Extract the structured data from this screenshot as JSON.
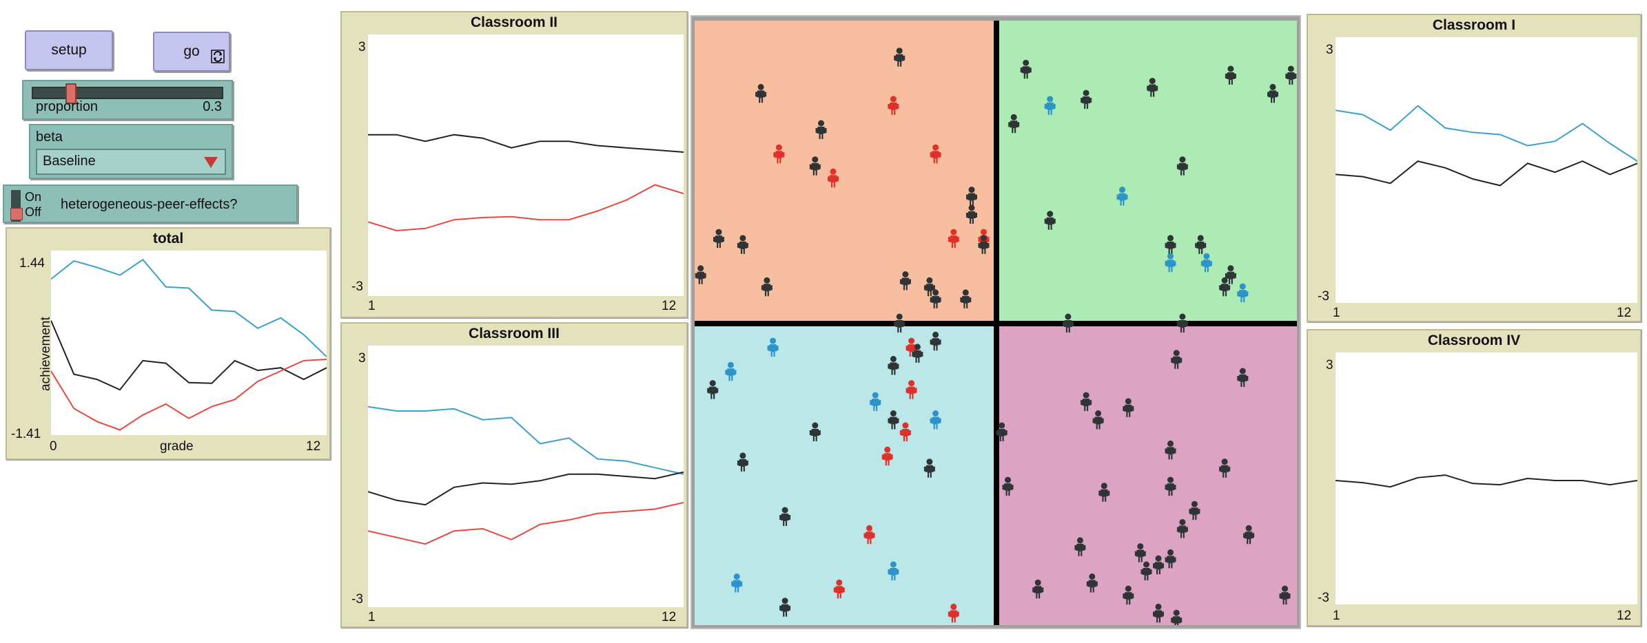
{
  "controls": {
    "setup_label": "setup",
    "go_label": "go",
    "forever_icon": "forever-arrows-icon",
    "slider": {
      "label": "proportion",
      "value_text": "0.3",
      "value": 0.3,
      "min": 0,
      "max": 1
    },
    "chooser": {
      "label": "beta",
      "selected": "Baseline"
    },
    "switch": {
      "on_label": "On",
      "off_label": "Off",
      "name": "heterogeneous-peer-effects?",
      "state": "Off"
    }
  },
  "colors": {
    "black_line": "#222222",
    "red_line": "#e8483d",
    "blue_line": "#3aa0d0",
    "room_orange": "#f7bf9f",
    "room_green": "#acebb4",
    "room_blue": "#bce7e9",
    "room_pink": "#dca3c2",
    "plot_bg": "#e4e2bd"
  },
  "plots": {
    "total": {
      "title": "total",
      "xlabel": "grade",
      "ylabel": "achievement",
      "xmin_label": "0",
      "xmax_label": "12",
      "ymax_label": "1.44",
      "ymin_label": "-1.41",
      "xlim": [
        0,
        12
      ],
      "ylim": [
        -1.41,
        1.44
      ],
      "series": [
        {
          "color": "#3aa0d0",
          "x": [
            0,
            1,
            2,
            3,
            4,
            5,
            6,
            7,
            8,
            9,
            10,
            11,
            12
          ],
          "y": [
            1.0,
            1.28,
            1.18,
            1.06,
            1.3,
            0.88,
            0.86,
            0.52,
            0.5,
            0.24,
            0.4,
            0.14,
            -0.2
          ]
        },
        {
          "color": "#222222",
          "x": [
            0,
            1,
            2,
            3,
            4,
            5,
            6,
            7,
            8,
            9,
            10,
            11,
            12
          ],
          "y": [
            0.36,
            -0.47,
            -0.55,
            -0.71,
            -0.26,
            -0.3,
            -0.6,
            -0.61,
            -0.26,
            -0.41,
            -0.37,
            -0.55,
            -0.37
          ]
        },
        {
          "color": "#e8483d",
          "x": [
            0,
            1,
            2,
            3,
            4,
            5,
            6,
            7,
            8,
            9,
            10,
            11,
            12
          ],
          "y": [
            -0.42,
            -1.0,
            -1.2,
            -1.33,
            -1.1,
            -0.93,
            -1.15,
            -0.97,
            -0.86,
            -0.58,
            -0.42,
            -0.26,
            -0.24
          ]
        }
      ]
    },
    "classroom_ii": {
      "title": "Classroom II",
      "xmin_label": "1",
      "xmax_label": "12",
      "ymax_label": "3",
      "ymin_label": "-3",
      "xlim": [
        1,
        12
      ],
      "ylim": [
        -3,
        3
      ],
      "series": [
        {
          "color": "#222222",
          "x": [
            1,
            2,
            3,
            4,
            5,
            6,
            7,
            8,
            9,
            10,
            11,
            12
          ],
          "y": [
            0.7,
            0.7,
            0.55,
            0.7,
            0.62,
            0.4,
            0.55,
            0.55,
            0.45,
            0.4,
            0.35,
            0.3
          ]
        },
        {
          "color": "#e8483d",
          "x": [
            1,
            2,
            3,
            4,
            5,
            6,
            7,
            8,
            9,
            10,
            11,
            12
          ],
          "y": [
            -1.3,
            -1.5,
            -1.45,
            -1.25,
            -1.2,
            -1.18,
            -1.25,
            -1.25,
            -1.05,
            -0.8,
            -0.45,
            -0.65
          ]
        }
      ]
    },
    "classroom_iii": {
      "title": "Classroom III",
      "xmin_label": "1",
      "xmax_label": "12",
      "ymax_label": "3",
      "ymin_label": "-3",
      "xlim": [
        1,
        12
      ],
      "ylim": [
        -3,
        3
      ],
      "series": [
        {
          "color": "#3aa0d0",
          "x": [
            1,
            2,
            3,
            4,
            5,
            6,
            7,
            8,
            9,
            10,
            11,
            12
          ],
          "y": [
            1.6,
            1.5,
            1.5,
            1.55,
            1.3,
            1.35,
            0.75,
            0.88,
            0.4,
            0.35,
            0.2,
            0.05
          ]
        },
        {
          "color": "#222222",
          "x": [
            1,
            2,
            3,
            4,
            5,
            6,
            7,
            8,
            9,
            10,
            11,
            12
          ],
          "y": [
            -0.35,
            -0.55,
            -0.65,
            -0.25,
            -0.15,
            -0.18,
            -0.1,
            0.05,
            0.05,
            0.0,
            -0.05,
            0.1
          ]
        },
        {
          "color": "#e8483d",
          "x": [
            1,
            2,
            3,
            4,
            5,
            6,
            7,
            8,
            9,
            10,
            11,
            12
          ],
          "y": [
            -1.25,
            -1.4,
            -1.55,
            -1.25,
            -1.2,
            -1.45,
            -1.1,
            -1.0,
            -0.85,
            -0.8,
            -0.75,
            -0.6
          ]
        }
      ]
    },
    "classroom_i": {
      "title": "Classroom I",
      "xmin_label": "1",
      "xmax_label": "12",
      "ymax_label": "3",
      "ymin_label": "-3",
      "xlim": [
        1,
        12
      ],
      "ylim": [
        -3,
        3
      ],
      "series": [
        {
          "color": "#3aa0d0",
          "x": [
            1,
            2,
            3,
            4,
            5,
            6,
            7,
            8,
            9,
            10,
            11,
            12
          ],
          "y": [
            1.35,
            1.25,
            0.9,
            1.45,
            0.95,
            0.85,
            0.8,
            0.55,
            0.65,
            1.05,
            0.6,
            0.2
          ]
        },
        {
          "color": "#222222",
          "x": [
            1,
            2,
            3,
            4,
            5,
            6,
            7,
            8,
            9,
            10,
            11,
            12
          ],
          "y": [
            -0.1,
            -0.15,
            -0.3,
            0.2,
            0.05,
            -0.2,
            -0.35,
            0.15,
            -0.05,
            0.2,
            -0.1,
            0.15
          ]
        }
      ]
    },
    "classroom_iv": {
      "title": "Classroom IV",
      "xmin_label": "1",
      "xmax_label": "12",
      "ymax_label": "3",
      "ymin_label": "-3",
      "xlim": [
        1,
        12
      ],
      "ylim": [
        -3,
        3
      ],
      "series": [
        {
          "color": "#222222",
          "x": [
            1,
            2,
            3,
            4,
            5,
            6,
            7,
            8,
            9,
            10,
            11,
            12
          ],
          "y": [
            -0.05,
            -0.1,
            -0.2,
            0.02,
            0.08,
            -0.12,
            -0.15,
            0.0,
            -0.05,
            -0.05,
            -0.15,
            -0.05
          ]
        }
      ]
    }
  },
  "world": {
    "agents": [
      [
        0.34,
        0.06,
        "k"
      ],
      [
        0.11,
        0.12,
        "k"
      ],
      [
        0.65,
        0.13,
        "k"
      ],
      [
        0.55,
        0.08,
        "k"
      ],
      [
        0.76,
        0.11,
        "k"
      ],
      [
        0.89,
        0.09,
        "k"
      ],
      [
        0.96,
        0.12,
        "k"
      ],
      [
        0.99,
        0.09,
        "k"
      ],
      [
        0.59,
        0.14,
        "b"
      ],
      [
        0.53,
        0.17,
        "k"
      ],
      [
        0.21,
        0.18,
        "k"
      ],
      [
        0.33,
        0.14,
        "r"
      ],
      [
        0.4,
        0.22,
        "r"
      ],
      [
        0.14,
        0.22,
        "r"
      ],
      [
        0.2,
        0.24,
        "k"
      ],
      [
        0.23,
        0.26,
        "r"
      ],
      [
        0.81,
        0.24,
        "k"
      ],
      [
        0.71,
        0.29,
        "b"
      ],
      [
        0.46,
        0.29,
        "k"
      ],
      [
        0.46,
        0.32,
        "k"
      ],
      [
        0.59,
        0.33,
        "k"
      ],
      [
        0.43,
        0.36,
        "r"
      ],
      [
        0.48,
        0.36,
        "r"
      ],
      [
        0.48,
        0.37,
        "k"
      ],
      [
        0.04,
        0.36,
        "k"
      ],
      [
        0.08,
        0.37,
        "k"
      ],
      [
        0.79,
        0.37,
        "k"
      ],
      [
        0.84,
        0.37,
        "k"
      ],
      [
        0.79,
        0.4,
        "b"
      ],
      [
        0.85,
        0.4,
        "b"
      ],
      [
        0.89,
        0.42,
        "k"
      ],
      [
        0.01,
        0.42,
        "k"
      ],
      [
        0.12,
        0.44,
        "k"
      ],
      [
        0.35,
        0.43,
        "k"
      ],
      [
        0.39,
        0.44,
        "k"
      ],
      [
        0.45,
        0.46,
        "k"
      ],
      [
        0.4,
        0.46,
        "k"
      ],
      [
        0.88,
        0.44,
        "k"
      ],
      [
        0.91,
        0.45,
        "b"
      ],
      [
        0.62,
        0.5,
        "k"
      ],
      [
        0.34,
        0.5,
        "k"
      ],
      [
        0.81,
        0.5,
        "k"
      ],
      [
        0.13,
        0.54,
        "b"
      ],
      [
        0.36,
        0.54,
        "r"
      ],
      [
        0.37,
        0.55,
        "k"
      ],
      [
        0.4,
        0.53,
        "k"
      ],
      [
        0.06,
        0.58,
        "b"
      ],
      [
        0.03,
        0.61,
        "k"
      ],
      [
        0.33,
        0.57,
        "k"
      ],
      [
        0.36,
        0.61,
        "r"
      ],
      [
        0.8,
        0.56,
        "k"
      ],
      [
        0.91,
        0.59,
        "k"
      ],
      [
        0.65,
        0.63,
        "k"
      ],
      [
        0.67,
        0.66,
        "k"
      ],
      [
        0.72,
        0.64,
        "k"
      ],
      [
        0.3,
        0.63,
        "b"
      ],
      [
        0.33,
        0.66,
        "k"
      ],
      [
        0.35,
        0.68,
        "r"
      ],
      [
        0.4,
        0.66,
        "b"
      ],
      [
        0.2,
        0.68,
        "k"
      ],
      [
        0.51,
        0.68,
        "k"
      ],
      [
        0.32,
        0.72,
        "r"
      ],
      [
        0.08,
        0.73,
        "k"
      ],
      [
        0.39,
        0.74,
        "k"
      ],
      [
        0.79,
        0.71,
        "k"
      ],
      [
        0.88,
        0.74,
        "k"
      ],
      [
        0.52,
        0.77,
        "k"
      ],
      [
        0.79,
        0.77,
        "k"
      ],
      [
        0.68,
        0.78,
        "k"
      ],
      [
        0.83,
        0.81,
        "k"
      ],
      [
        0.15,
        0.82,
        "k"
      ],
      [
        0.81,
        0.84,
        "k"
      ],
      [
        0.92,
        0.85,
        "k"
      ],
      [
        0.29,
        0.85,
        "r"
      ],
      [
        0.64,
        0.87,
        "k"
      ],
      [
        0.74,
        0.88,
        "k"
      ],
      [
        0.79,
        0.89,
        "k"
      ],
      [
        0.77,
        0.9,
        "k"
      ],
      [
        0.75,
        0.91,
        "k"
      ],
      [
        0.66,
        0.93,
        "k"
      ],
      [
        0.07,
        0.93,
        "b"
      ],
      [
        0.33,
        0.91,
        "b"
      ],
      [
        0.24,
        0.94,
        "r"
      ],
      [
        0.57,
        0.94,
        "k"
      ],
      [
        0.72,
        0.95,
        "k"
      ],
      [
        0.98,
        0.95,
        "k"
      ],
      [
        0.15,
        0.97,
        "k"
      ],
      [
        0.43,
        0.98,
        "r"
      ],
      [
        0.77,
        0.98,
        "k"
      ],
      [
        0.8,
        0.99,
        "k"
      ]
    ]
  }
}
